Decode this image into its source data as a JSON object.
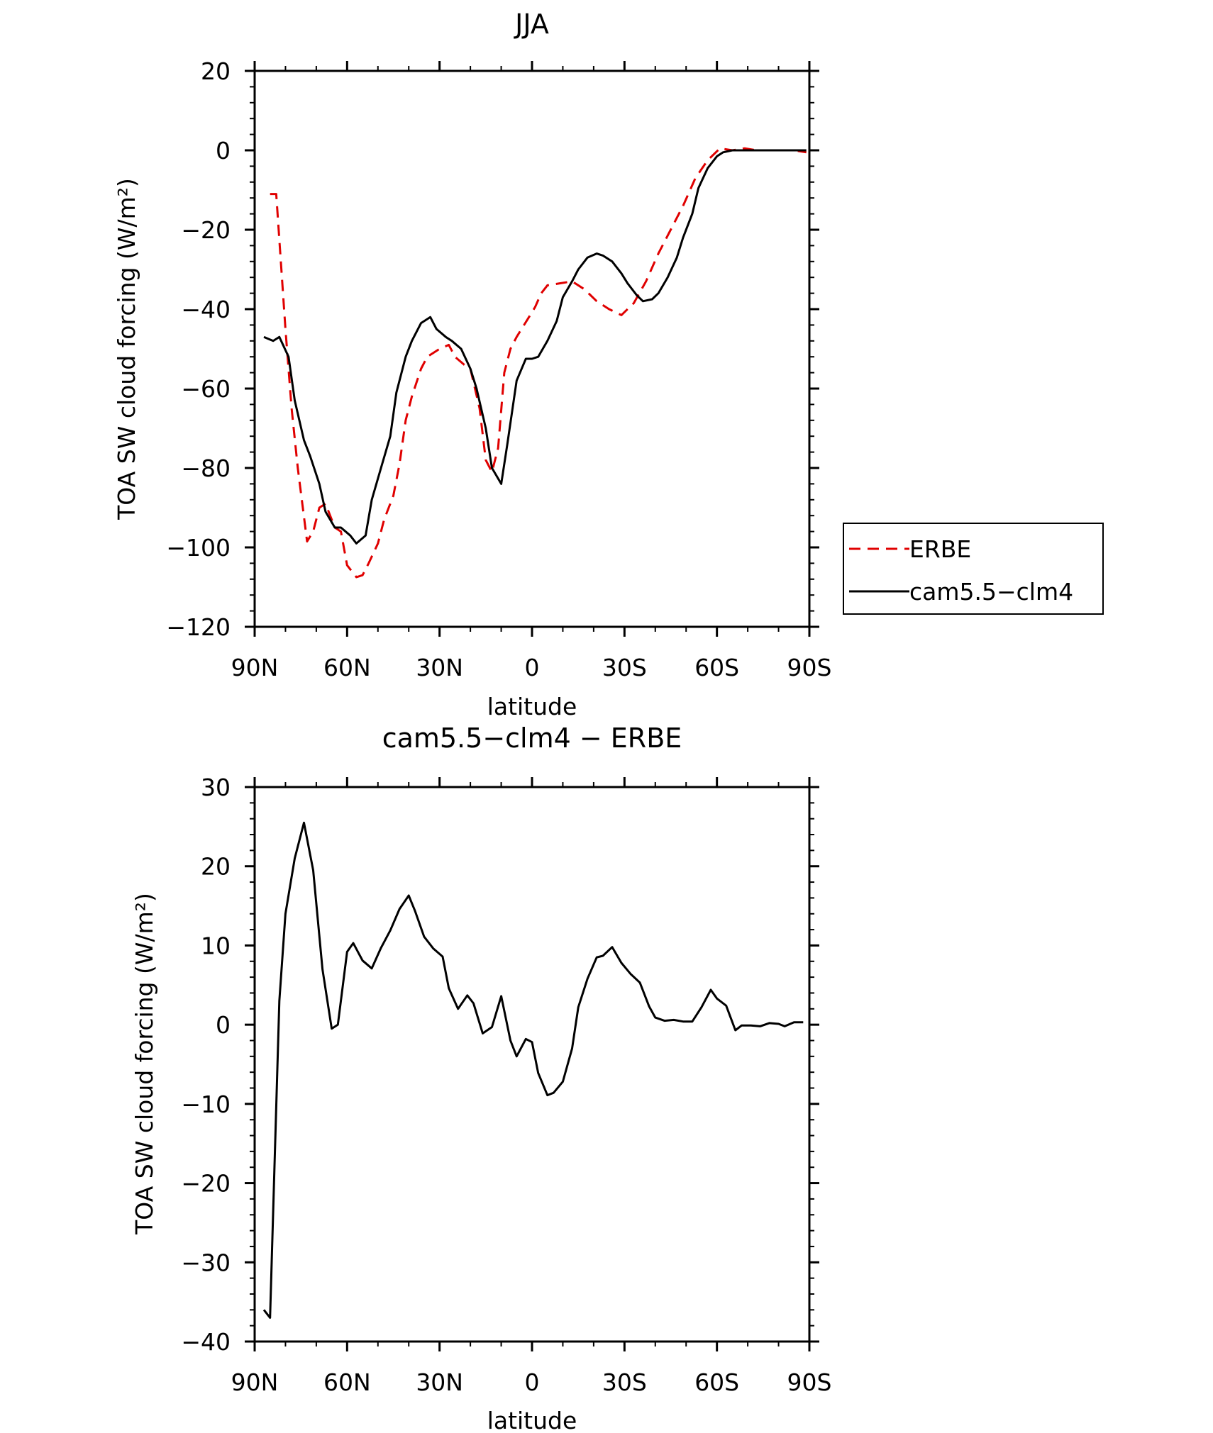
{
  "chart_data": [
    {
      "type": "line",
      "title": "JJA",
      "xlabel": "latitude",
      "ylabel": "TOA SW cloud forcing (W/m²)",
      "ylim": [
        -120,
        20
      ],
      "xlim": [
        90,
        -90
      ],
      "xticks": [
        90,
        60,
        30,
        0,
        -30,
        -60,
        -90
      ],
      "xtick_labels": [
        "90N",
        "60N",
        "30N",
        "0",
        "30S",
        "60S",
        "90S"
      ],
      "yticks": [
        20,
        0,
        -20,
        -40,
        -60,
        -80,
        -100,
        -120
      ],
      "ytick_labels": [
        "20",
        "0",
        "−20",
        "−40",
        "−60",
        "−80",
        "−100",
        "−120"
      ],
      "legend": "right",
      "series": [
        {
          "name": "ERBE",
          "color": "#e00000",
          "dash": true,
          "x": [
            85,
            83,
            80,
            78,
            76,
            73,
            71,
            69,
            67,
            64,
            62,
            60,
            57,
            55,
            53,
            50,
            48,
            45,
            43,
            41,
            39,
            36,
            34,
            32,
            30,
            27,
            25,
            22,
            20,
            17,
            15,
            13,
            11,
            9,
            7,
            5,
            3,
            1,
            -1,
            -3,
            -5,
            -9,
            -13,
            -17,
            -21,
            -25,
            -29,
            -33,
            -37,
            -41,
            -45,
            -49,
            -53,
            -57,
            -61,
            -65,
            -69,
            -73,
            -77,
            -81,
            -85,
            -89
          ],
          "y": [
            -11,
            -11,
            -45,
            -65,
            -80,
            -98.5,
            -96,
            -90,
            -89,
            -95,
            -96,
            -104.5,
            -107.5,
            -107,
            -104,
            -99,
            -93,
            -87,
            -79,
            -68,
            -62,
            -55,
            -52,
            -51,
            -50,
            -49,
            -52,
            -54,
            -55,
            -65,
            -78,
            -81,
            -75,
            -56,
            -50,
            -47,
            -44.5,
            -42,
            -39.5,
            -36,
            -34,
            -33.5,
            -33,
            -35,
            -38,
            -40,
            -41.5,
            -38.5,
            -33,
            -26,
            -20,
            -14,
            -7,
            -2.5,
            0.5,
            0,
            0.5,
            0,
            0,
            0,
            0,
            -0.5
          ]
        },
        {
          "name": "cam5.5−clm4",
          "color": "#000000",
          "dash": false,
          "x": [
            87,
            84,
            82,
            79,
            77,
            74,
            72,
            69,
            67,
            64,
            62,
            59,
            57,
            54,
            52,
            49,
            46,
            44,
            41,
            39,
            36,
            33,
            31,
            28,
            26,
            23,
            20,
            18,
            15,
            13,
            10,
            8,
            5,
            2,
            0,
            -2,
            -5,
            -8,
            -10,
            -13,
            -15,
            -18,
            -21,
            -23,
            -26,
            -29,
            -31,
            -34,
            -36,
            -39,
            -41,
            -44,
            -47,
            -49,
            -52,
            -54,
            -57,
            -60,
            -62,
            -65,
            -67,
            -70,
            -75,
            -80,
            -85,
            -89
          ],
          "y": [
            -47,
            -48,
            -47,
            -52,
            -63,
            -73,
            -77,
            -84,
            -91,
            -95,
            -95,
            -97,
            -99,
            -97,
            -88,
            -80,
            -72,
            -61,
            -52,
            -48,
            -43.5,
            -42,
            -45,
            -47,
            -48,
            -50,
            -55,
            -60,
            -70,
            -80,
            -84,
            -74,
            -58,
            -52.5,
            -52.5,
            -52,
            -48,
            -43,
            -37,
            -33,
            -30,
            -27,
            -26,
            -26.5,
            -28,
            -31,
            -33.5,
            -36.5,
            -38,
            -37.5,
            -36,
            -32,
            -27,
            -22,
            -16,
            -9.5,
            -4.5,
            -1.5,
            -0.5,
            0,
            0,
            0,
            0,
            0,
            0,
            0
          ]
        }
      ]
    },
    {
      "type": "line",
      "title": "cam5.5−clm4 − ERBE",
      "xlabel": "latitude",
      "ylabel": "TOA SW cloud forcing (W/m²)",
      "ylim": [
        -40,
        30
      ],
      "xlim": [
        90,
        -90
      ],
      "xticks": [
        90,
        60,
        30,
        0,
        -30,
        -60,
        -90
      ],
      "xtick_labels": [
        "90N",
        "60N",
        "30N",
        "0",
        "30S",
        "60S",
        "90S"
      ],
      "yticks": [
        30,
        20,
        10,
        0,
        -10,
        -20,
        -30,
        -40
      ],
      "ytick_labels": [
        "30",
        "20",
        "10",
        "0",
        "−10",
        "−20",
        "−30",
        "−40"
      ],
      "series": [
        {
          "name": "",
          "color": "#000000",
          "dash": false,
          "x": [
            87,
            85,
            82,
            80,
            77,
            74,
            71,
            68,
            65,
            63,
            60,
            58,
            55,
            52,
            49,
            46,
            43,
            40,
            38,
            35,
            32,
            29,
            27,
            24,
            21,
            19,
            16,
            13,
            10,
            7,
            5,
            2,
            0,
            -2,
            -5,
            -7,
            -10,
            -13,
            -15,
            -18,
            -21,
            -23,
            -26,
            -29,
            -32,
            -35,
            -38,
            -40,
            -43,
            -46,
            -49,
            -52,
            -55,
            -58,
            -60,
            -63,
            -66,
            -68,
            -71,
            -74,
            -77,
            -80,
            -82,
            -85,
            -88
          ],
          "y": [
            -36,
            -37,
            3,
            14,
            21,
            25.5,
            19.5,
            7,
            -0.5,
            0,
            9.2,
            10.3,
            8.1,
            7.1,
            9.7,
            11.9,
            14.6,
            16.3,
            14.4,
            11.1,
            9.6,
            8.6,
            4.6,
            2,
            3.7,
            2.7,
            -1.1,
            -0.3,
            3.6,
            -2,
            -4,
            -1.8,
            -2.2,
            -6.1,
            -8.9,
            -8.6,
            -7.2,
            -3,
            2.2,
            5.8,
            8.5,
            8.7,
            9.8,
            7.8,
            6.4,
            5.3,
            2.3,
            0.9,
            0.5,
            0.6,
            0.4,
            0.4,
            2.2,
            4.4,
            3.3,
            2.4,
            -0.7,
            -0.1,
            -0.1,
            -0.2,
            0.2,
            0.1,
            -0.2,
            0.3,
            0.3
          ]
        }
      ]
    }
  ]
}
